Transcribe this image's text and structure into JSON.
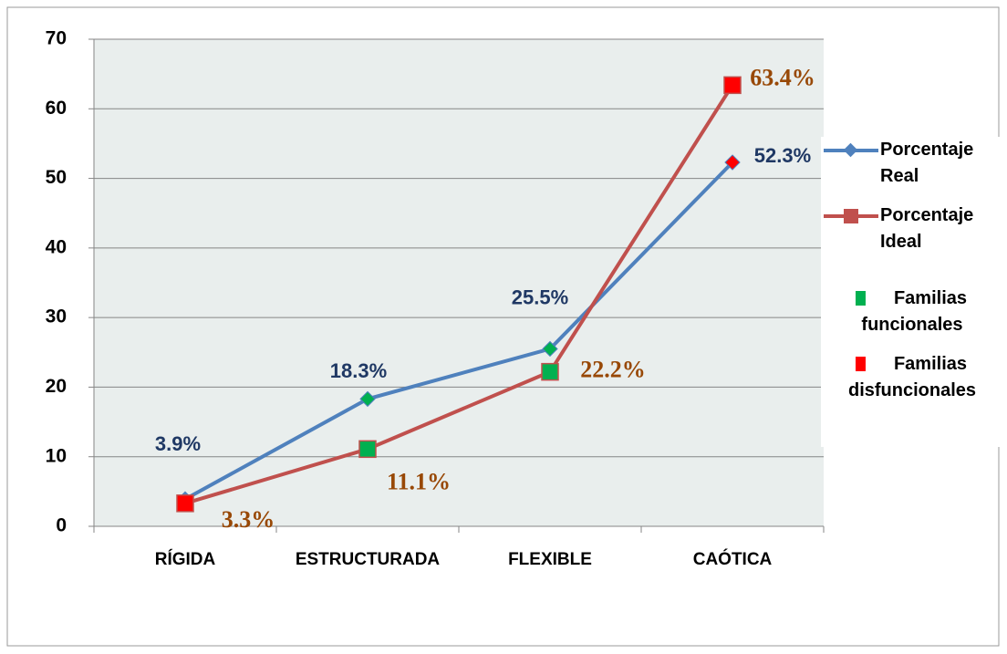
{
  "chart_data": {
    "type": "line",
    "categories": [
      "RÍGIDA",
      "ESTRUCTURADA",
      "FLEXIBLE",
      "CAÓTICA"
    ],
    "series": [
      {
        "name": "Porcentaje Real",
        "color": "#4f81bd",
        "marker": "diamond",
        "marker_colors": [
          "#4f81bd",
          "#00b050",
          "#00b050",
          "#ff0000"
        ],
        "label_color": "#1f3864",
        "values": [
          3.9,
          18.3,
          25.5,
          52.3
        ],
        "value_labels": [
          "3.9%",
          "18.3%",
          "25.5%",
          "52.3%"
        ]
      },
      {
        "name": "Porcentaje Ideal",
        "color": "#c0504d",
        "marker": "square",
        "marker_colors": [
          "#ff0000",
          "#00b050",
          "#00b050",
          "#ff0000"
        ],
        "label_color": "#984806",
        "values": [
          3.3,
          11.1,
          22.2,
          63.4
        ],
        "value_labels": [
          "3.3%",
          "11.1%",
          "22.2%",
          "63.4%"
        ]
      }
    ],
    "legend_extra": [
      {
        "name": "Familias funcionales",
        "color": "#00b050"
      },
      {
        "name": "Familias disfuncionales",
        "color": "#ff0000"
      }
    ],
    "ylim": [
      0,
      70
    ],
    "yticks": [
      0,
      10,
      20,
      30,
      40,
      50,
      60,
      70
    ],
    "grid": true,
    "plot_background": "#e9eeed",
    "legend": "right"
  }
}
